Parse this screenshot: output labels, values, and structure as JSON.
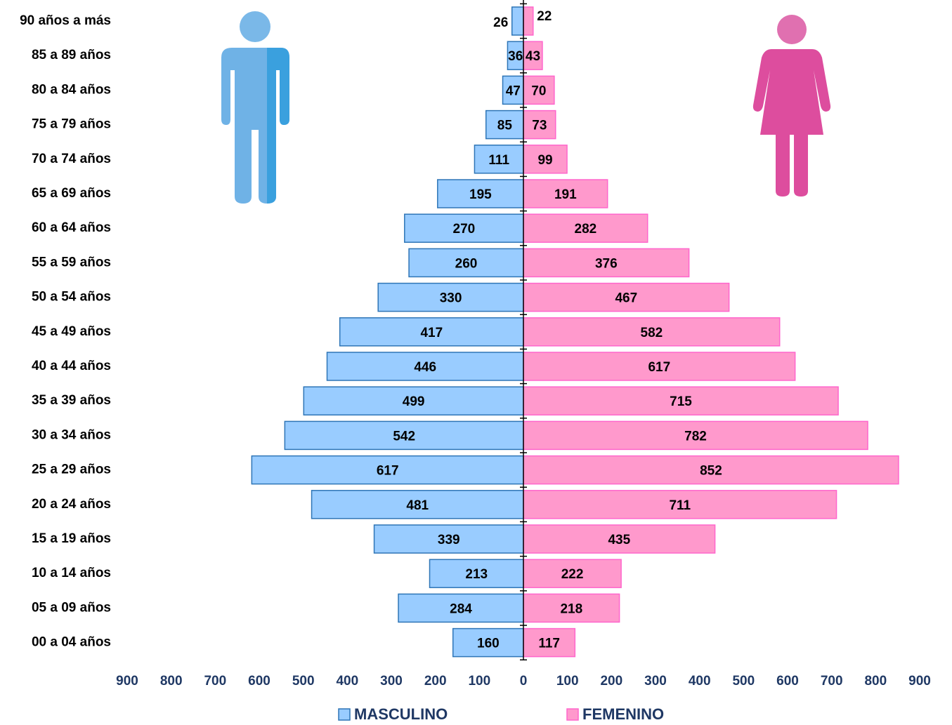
{
  "chart_data": {
    "type": "pyramid",
    "categories": [
      "90 años a más",
      "85 a 89 años",
      "80 a 84 años",
      "75 a 79 años",
      "70 a 74 años",
      "65 a 69 años",
      "60 a 64 años",
      "55 a 59 años",
      "50 a 54 años",
      "45 a 49 años",
      "40 a 44 años",
      "35 a 39 años",
      "30 a 34 años",
      "25 a 29 años",
      "20 a 24 años",
      "15 a 19 años",
      "10 a 14 años",
      "05 a 09 años",
      "00 a 04 años"
    ],
    "series": [
      {
        "name": "MASCULINO",
        "color": "#99ccff",
        "edgecolor": "#2e75b6",
        "side": "left",
        "values": [
          26,
          36,
          47,
          85,
          111,
          195,
          270,
          260,
          330,
          417,
          446,
          499,
          542,
          617,
          481,
          339,
          213,
          284,
          160
        ]
      },
      {
        "name": "FEMENINO",
        "color": "#ff99cc",
        "edgecolor": "#ff66cc",
        "side": "right",
        "values": [
          22,
          43,
          70,
          73,
          99,
          191,
          282,
          376,
          467,
          582,
          617,
          715,
          782,
          852,
          711,
          435,
          222,
          218,
          117
        ]
      }
    ],
    "xlim": [
      -900,
      900
    ],
    "xticks": [
      {
        "value": -900,
        "label": "900"
      },
      {
        "value": -800,
        "label": "800"
      },
      {
        "value": -700,
        "label": "700"
      },
      {
        "value": -600,
        "label": "600"
      },
      {
        "value": -500,
        "label": "500"
      },
      {
        "value": -400,
        "label": "400"
      },
      {
        "value": -300,
        "label": "300"
      },
      {
        "value": -200,
        "label": "200"
      },
      {
        "value": -100,
        "label": "100"
      },
      0,
      100,
      200,
      300,
      400,
      500,
      600,
      700,
      800,
      900
    ]
  }
}
